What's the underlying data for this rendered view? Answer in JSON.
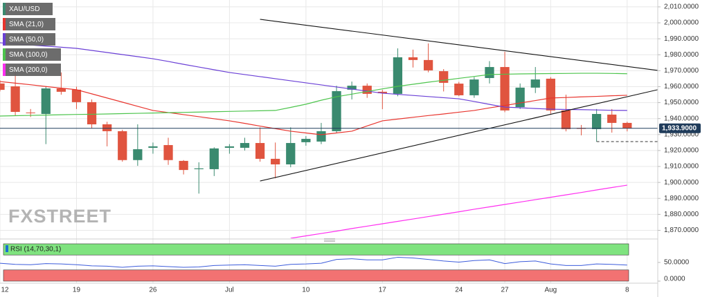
{
  "chart_data": [
    {
      "type": "candlestick",
      "categories": [
        "12",
        null,
        null,
        null,
        null,
        "19",
        null,
        null,
        null,
        null,
        "26",
        null,
        null,
        null,
        null,
        "Jul",
        null,
        null,
        null,
        null,
        "10",
        null,
        null,
        null,
        null,
        "17",
        null,
        null,
        null,
        null,
        "24",
        null,
        null,
        "27",
        null,
        null,
        "Aug",
        null,
        null,
        null,
        null,
        "8"
      ],
      "xlim": [
        0,
        43
      ],
      "ylim": [
        1865,
        2014.3
      ],
      "yticks": [
        {
          "value": 2010,
          "label": "2,010.0000"
        },
        {
          "value": 2000,
          "label": "2,000.0000"
        },
        {
          "value": 1990,
          "label": "1,990.0000"
        },
        {
          "value": 1980,
          "label": "1,980.0000"
        },
        {
          "value": 1970,
          "label": "1,970.0000"
        },
        {
          "value": 1960,
          "label": "1,960.0000"
        },
        {
          "value": 1950,
          "label": "1,950.0000"
        },
        {
          "value": 1940,
          "label": "1,940.0000"
        },
        {
          "value": 1930,
          "label": "1,930.0000"
        },
        {
          "value": 1920,
          "label": "1,920.0000"
        },
        {
          "value": 1910,
          "label": "1,910.0000"
        },
        {
          "value": 1900,
          "label": "1,900.0000"
        },
        {
          "value": 1890,
          "label": "1,890.0000"
        },
        {
          "value": 1880,
          "label": "1,880.0000"
        },
        {
          "value": 1870,
          "label": "1,870.0000"
        }
      ],
      "grid": true,
      "series": [
        {
          "name": "XAU/USD",
          "up_color": "#3a8a6f",
          "down_color": "#e0543f",
          "open": [
            1962,
            1960.2,
            1943.8,
            1942.9,
            1958.9,
            1958.1,
            1950.3,
            1936.4,
            1932.1,
            1914,
            1921.7,
            1923.4,
            1913.5,
            1908.3,
            1908.3,
            1921.7,
            1921.7,
            1924.7,
            1914.8,
            1911.3,
            1925.2,
            1925.6,
            1932.1,
            1958.1,
            1960.6,
            1956.8,
            1955.5,
            1978.4,
            1976.7,
            1969.7,
            1961.9,
            1954.6,
            1965.4,
            1972.3,
            1947.2,
            1959.4,
            1965,
            1945.1,
            1934.2,
            1933.4,
            1942.5,
            1937.3
          ],
          "high": [
            1964,
            1968.9,
            1946,
            1960,
            1968.9,
            1960,
            1952,
            1938,
            1933,
            1936.4,
            1925,
            1928,
            1914,
            1912.6,
            1922,
            1924,
            1928,
            1934.5,
            1925,
            1934.5,
            1929,
            1937.3,
            1960.6,
            1963.2,
            1962,
            1958,
            1984,
            1983.2,
            1987.1,
            1971,
            1963,
            1966,
            1976,
            1981.9,
            1962,
            1972.3,
            1966,
            1955,
            1936,
            1946,
            1946,
            1938
          ],
          "low": [
            1957,
            1942,
            1941,
            1924,
            1955,
            1946,
            1934,
            1922.6,
            1913,
            1910.4,
            1918,
            1911,
            1905,
            1893,
            1904,
            1918,
            1920,
            1913,
            1902.6,
            1909.5,
            1923,
            1924,
            1931,
            1952,
            1953,
            1945.9,
            1954,
            1972,
            1969,
            1957,
            1954,
            1953,
            1962,
            1944,
            1946,
            1956,
            1943,
            1932,
            1929.5,
            1925.6,
            1931.2,
            1932
          ],
          "close": [
            1958,
            1944.2,
            1943.5,
            1958.9,
            1956.8,
            1950.3,
            1936.4,
            1932.1,
            1914,
            1920.8,
            1922.6,
            1914,
            1907.8,
            1908.8,
            1921.3,
            1922.6,
            1924.7,
            1914.8,
            1911.3,
            1924.7,
            1927.3,
            1932.1,
            1957.2,
            1960.6,
            1955.5,
            1955.9,
            1978.4,
            1976.7,
            1970.2,
            1962.4,
            1954.6,
            1964.5,
            1972.3,
            1945.1,
            1959.4,
            1964.5,
            1945.1,
            1933.4,
            1933.6,
            1942.9,
            1937.3,
            1933.9
          ]
        },
        {
          "name": "SMA (21,0)",
          "color": "#e8342d",
          "values": [
            1963.2,
            1962.2,
            1961.2,
            1960.1,
            1959.1,
            1958.1,
            1955.5,
            1952.9,
            1950.3,
            1947.7,
            1945.1,
            1943.8,
            1942.5,
            1941.2,
            1939.9,
            1938.6,
            1937,
            1935.3,
            1933.7,
            1932.1,
            1931,
            1929.9,
            1931,
            1932.1,
            1935.4,
            1938.6,
            1939.7,
            1940.8,
            1941.9,
            1942.9,
            1944,
            1945.1,
            1946.7,
            1948.2,
            1949.8,
            1951.3,
            1952.9,
            1953.2,
            1953.6,
            1953.9,
            1954.3,
            1954.6
          ]
        },
        {
          "name": "SMA (50,0)",
          "color": "#6a3fd6",
          "values": [
            1987.5,
            1986.8,
            1986.1,
            1985.4,
            1984.7,
            1984,
            1982.7,
            1981.4,
            1980.1,
            1978.8,
            1977.5,
            1975.8,
            1974,
            1972.3,
            1970.6,
            1968.9,
            1967.6,
            1966.3,
            1965,
            1963.7,
            1962.4,
            1961.1,
            1959.8,
            1958.5,
            1957.2,
            1955.9,
            1955.2,
            1954.5,
            1953.8,
            1953.1,
            1952.4,
            1950.7,
            1948.9,
            1947.2,
            1946.8,
            1946.3,
            1945.9,
            1945.7,
            1945.6,
            1945.4,
            1945.2,
            1945.1
          ]
        },
        {
          "name": "SMA (100,0)",
          "color": "#4cc44c",
          "values": [
            1941.6,
            1941.8,
            1942,
            1942.2,
            1942.4,
            1942.6,
            1942.7,
            1942.9,
            1943.1,
            1943.3,
            1943.5,
            1943.7,
            1943.9,
            1944.1,
            1944.3,
            1944.5,
            1944.7,
            1944.9,
            1945.1,
            1947,
            1949,
            1951.5,
            1953.7,
            1955.3,
            1957,
            1958.6,
            1960.2,
            1961.5,
            1962.8,
            1964,
            1965.2,
            1966.4,
            1967.6,
            1967.8,
            1968,
            1968.1,
            1968.2,
            1968.3,
            1968.4,
            1968.4,
            1968.3,
            1968.1
          ]
        },
        {
          "name": "SMA (200,0)",
          "color": "#ff2ef0",
          "values": [
            null,
            null,
            null,
            null,
            null,
            null,
            null,
            null,
            null,
            null,
            null,
            null,
            null,
            null,
            null,
            null,
            null,
            null,
            null,
            1865,
            1866.5,
            1868,
            1869.5,
            1871.1,
            1872.6,
            1874.1,
            1875.6,
            1877.1,
            1878.6,
            1880.1,
            1881.6,
            1883.2,
            1884.7,
            1886.2,
            1887.7,
            1889.2,
            1890.7,
            1892.2,
            1893.7,
            1895.3,
            1896.8,
            1898.3
          ]
        }
      ],
      "last_price": {
        "value": 1933.9,
        "label": "1,933.9000"
      },
      "trendlines": [
        {
          "x": [
            17,
            43
          ],
          "y": [
            2002.2,
            1970.2
          ]
        },
        {
          "x": [
            17,
            43
          ],
          "y": [
            1900.9,
            1958.1
          ]
        }
      ],
      "dashed_level": {
        "x": [
          39,
          43
        ],
        "y": 1925.6
      },
      "watermark": "FXSTREET"
    },
    {
      "type": "line",
      "xlim": [
        0,
        43
      ],
      "ylim": [
        0,
        100
      ],
      "yticks": [
        {
          "value": 50,
          "label": "50.0000"
        },
        {
          "value": 0,
          "label": "0.0000"
        }
      ],
      "bands": [
        {
          "from": 70,
          "to": 100,
          "color": "#7fe37f"
        },
        {
          "from": 0,
          "to": 30,
          "color": "#f27272"
        }
      ],
      "series": [
        {
          "name": "RSI (14,70,30,1)",
          "color": "#3b5bdb",
          "values": [
            48,
            45,
            44,
            47,
            46,
            44,
            41,
            40,
            37,
            40,
            41,
            39,
            37,
            38,
            42,
            43,
            44,
            42,
            40,
            45,
            46,
            48,
            58,
            60,
            57,
            57,
            64,
            62,
            58,
            54,
            51,
            55,
            57,
            47,
            52,
            54,
            46,
            42,
            42,
            46,
            45,
            43
          ]
        }
      ]
    }
  ]
}
